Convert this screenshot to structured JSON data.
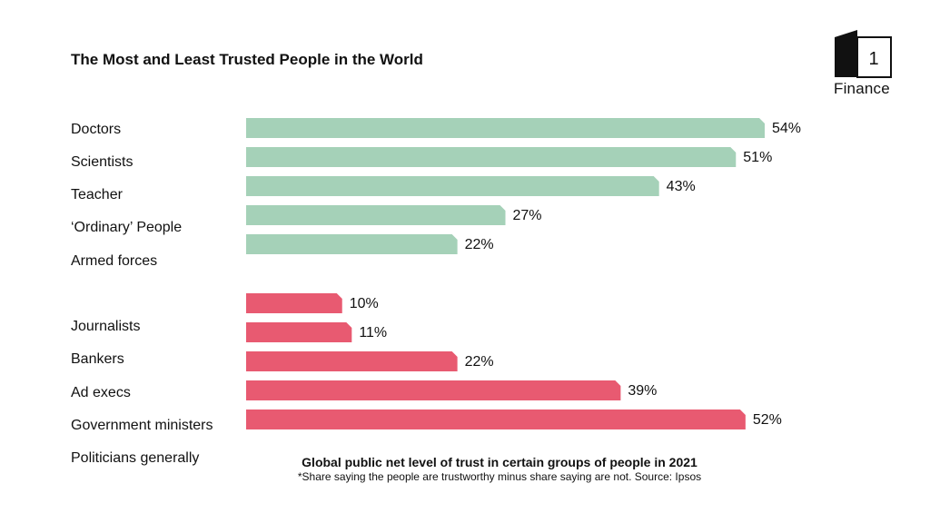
{
  "header": {
    "title": "The Most and Least Trusted People in the World",
    "logo_text": "Finance",
    "logo_mark": "1"
  },
  "category_labels": [
    "Doctors",
    "Scientists",
    "Teacher",
    "‘Ordinary’ People",
    "Armed forces",
    "Journalists",
    "Bankers",
    "Ad execs",
    "Government ministers",
    "Politicians generally"
  ],
  "chart_data": {
    "type": "bar",
    "orientation": "horizontal",
    "title": "The Most and Least Trusted People in the World",
    "subtitle": "Global public net level of trust in certain groups of people in 2021",
    "note": "*Share saying the people are trustworthy minus share saying are not. Source: Ipsos",
    "value_format": "percent",
    "series": [
      {
        "name": "",
        "color": "#a5d1b8",
        "values": [
          54,
          51,
          43,
          27,
          22
        ],
        "labels": [
          "54%",
          "51%",
          "43%",
          "27%",
          "22%"
        ]
      },
      {
        "name": "",
        "color": "#e85a71",
        "values": [
          10,
          11,
          22,
          39,
          52
        ],
        "labels": [
          "10%",
          "11%",
          "22%",
          "39%",
          "52%"
        ]
      }
    ],
    "xlim": [
      0,
      54
    ],
    "grid": false,
    "legend": "none"
  },
  "caption": {
    "title": "Global public net level of trust in certain groups of people in 2021",
    "note": "*Share saying the people are trustworthy minus share saying are not. Source: Ipsos"
  }
}
